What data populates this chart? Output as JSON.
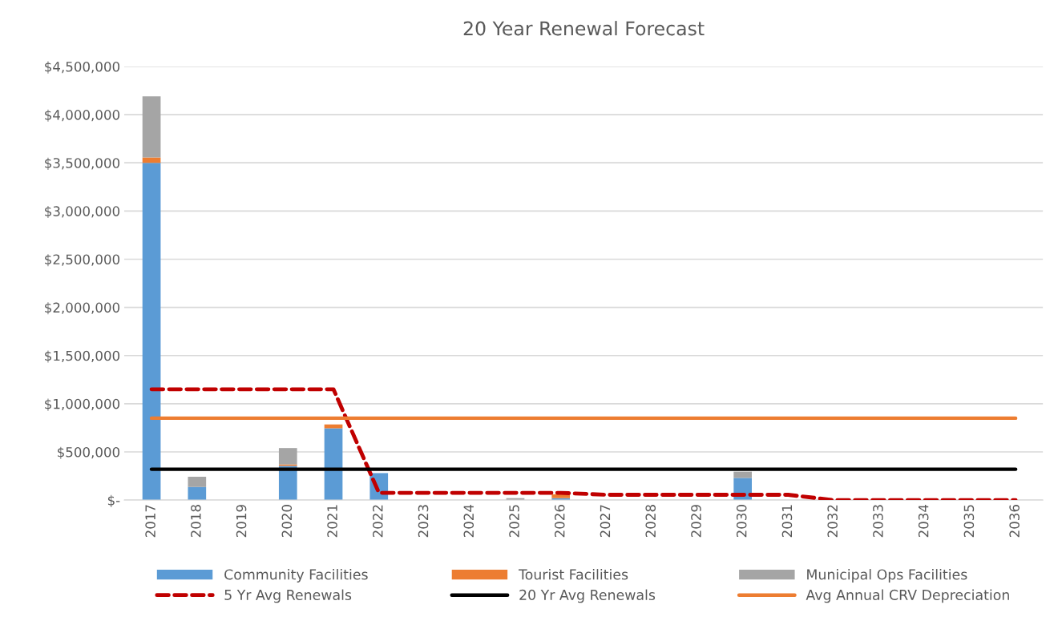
{
  "chart_data": {
    "type": "bar",
    "title": "20 Year Renewal Forecast",
    "stacked": true,
    "grid": "y",
    "legend": "bottom",
    "marker": "none",
    "categories": [
      "2017",
      "2018",
      "2019",
      "2020",
      "2021",
      "2022",
      "2023",
      "2024",
      "2025",
      "2026",
      "2027",
      "2028",
      "2029",
      "2030",
      "2031",
      "2032",
      "2033",
      "2034",
      "2035",
      "2036"
    ],
    "ylim": [
      0,
      4500000
    ],
    "yticks": [
      {
        "value": 0,
        "label": "$-"
      },
      {
        "value": 500000,
        "label": "$500,000"
      },
      {
        "value": 1000000,
        "label": "$1,000,000"
      },
      {
        "value": 1500000,
        "label": "$1,500,000"
      },
      {
        "value": 2000000,
        "label": "$2,000,000"
      },
      {
        "value": 2500000,
        "label": "$2,500,000"
      },
      {
        "value": 3000000,
        "label": "$3,000,000"
      },
      {
        "value": 3500000,
        "label": "$3,500,000"
      },
      {
        "value": 4000000,
        "label": "$4,000,000"
      },
      {
        "value": 4500000,
        "label": "$4,500,000"
      }
    ],
    "series": [
      {
        "name": "Community Facilities",
        "color": "#5b9bd5",
        "values": [
          3500000,
          135000,
          0,
          355000,
          745000,
          280000,
          0,
          0,
          0,
          20000,
          0,
          0,
          0,
          230000,
          0,
          0,
          0,
          0,
          0,
          0
        ]
      },
      {
        "name": "Tourist Facilities",
        "color": "#ed7d31",
        "values": [
          55000,
          0,
          0,
          15000,
          40000,
          0,
          0,
          0,
          0,
          40000,
          0,
          0,
          0,
          0,
          0,
          0,
          0,
          0,
          0,
          0
        ]
      },
      {
        "name": "Municipal Ops Facilities",
        "color": "#a5a5a5",
        "values": [
          635000,
          107000,
          0,
          170000,
          0,
          0,
          0,
          0,
          20000,
          0,
          0,
          0,
          0,
          65000,
          0,
          0,
          0,
          0,
          0,
          0
        ]
      },
      {
        "name": "5 Yr Avg Renewals",
        "type": "line",
        "color": "#c00000",
        "line_style": "dashed",
        "values": [
          1150000,
          1150000,
          1150000,
          1150000,
          1150000,
          75000,
          75000,
          75000,
          75000,
          75000,
          55000,
          55000,
          55000,
          55000,
          55000,
          0,
          0,
          0,
          0,
          0
        ]
      },
      {
        "name": "20 Yr Avg Renewals",
        "type": "line",
        "color": "#000000",
        "line_style": "solid",
        "values": [
          320000,
          320000,
          320000,
          320000,
          320000,
          320000,
          320000,
          320000,
          320000,
          320000,
          320000,
          320000,
          320000,
          320000,
          320000,
          320000,
          320000,
          320000,
          320000,
          320000
        ]
      },
      {
        "name": "Avg Annual CRV Depreciation",
        "type": "line",
        "color": "#ed7d31",
        "line_style": "solid",
        "values": [
          850000,
          850000,
          850000,
          850000,
          850000,
          850000,
          850000,
          850000,
          850000,
          850000,
          850000,
          850000,
          850000,
          850000,
          850000,
          850000,
          850000,
          850000,
          850000,
          850000
        ]
      }
    ]
  }
}
